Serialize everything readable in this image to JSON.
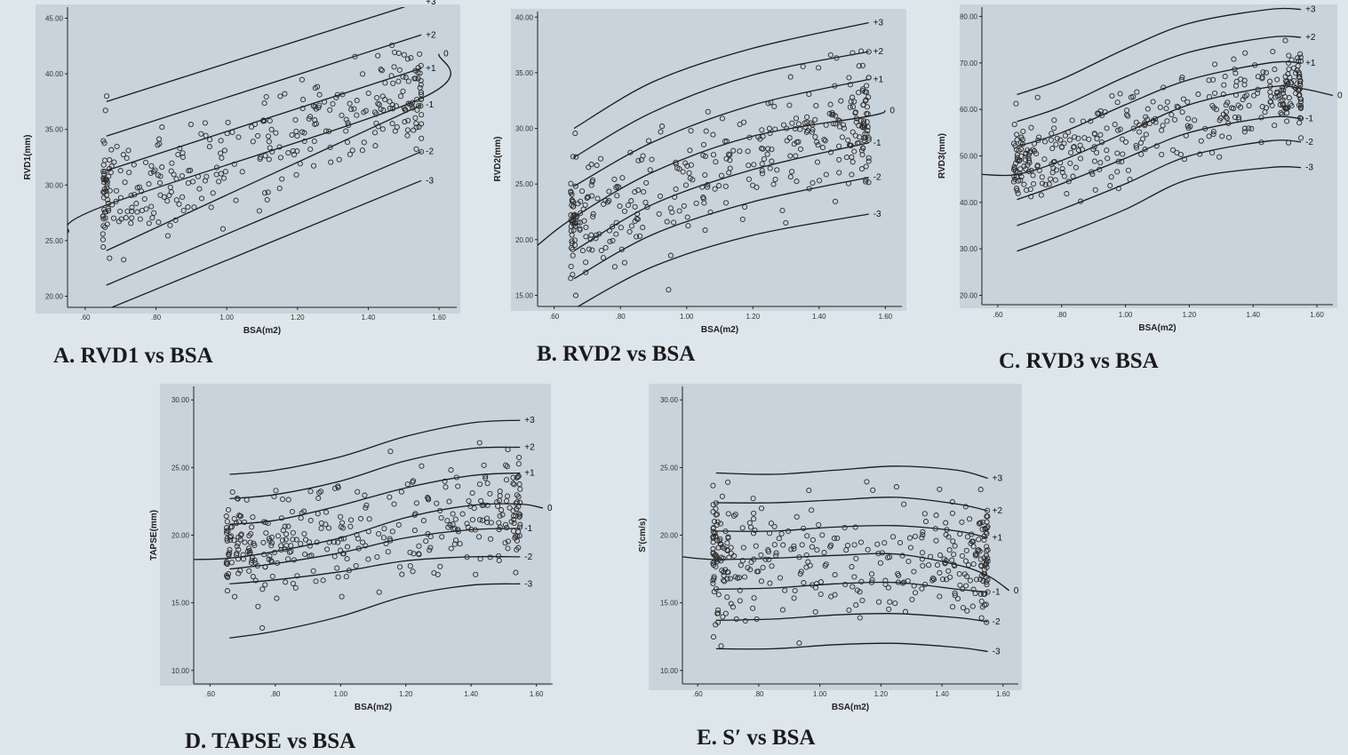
{
  "colors": {
    "background": "#dde6ea",
    "plot_bg": "#c8d3db",
    "line": "#1a1a1a",
    "marker": "#2a2a2a"
  },
  "chart_data": [
    {
      "id": "A",
      "type": "scatter",
      "caption": "A. RVD1 vs BSA",
      "xlabel": "BSA(m2)",
      "ylabel": "RVD1(mm)",
      "xlim": [
        0.55,
        1.65
      ],
      "ylim": [
        19,
        46
      ],
      "xticks": [
        ".60",
        ".80",
        "1.00",
        "1.20",
        "1.40",
        "1.60"
      ],
      "xtick_values": [
        0.6,
        0.8,
        1.0,
        1.2,
        1.4,
        1.6
      ],
      "yticks": [
        "20.00",
        "25.00",
        "30.00",
        "35.00",
        "40.00",
        "45.00"
      ],
      "ytick_values": [
        20,
        25,
        30,
        35,
        40,
        45
      ],
      "curve_x": [
        0.55,
        0.66,
        1.55,
        1.6
      ],
      "curves": [
        {
          "label": "+3",
          "y": [
            null,
            37.5,
            46.5,
            null
          ]
        },
        {
          "label": "+2",
          "y": [
            null,
            34.4,
            43.5,
            null
          ]
        },
        {
          "label": "+1",
          "y": [
            null,
            31.3,
            40.5,
            null
          ]
        },
        {
          "label": "0",
          "y": [
            25.7,
            28.2,
            37.8,
            41.8
          ]
        },
        {
          "label": "-1",
          "y": [
            null,
            24.1,
            37.2,
            null
          ]
        },
        {
          "label": "-2",
          "y": [
            null,
            21.0,
            33.0,
            null
          ]
        },
        {
          "label": "-3",
          "y": [
            null,
            18.8,
            30.4,
            null
          ]
        }
      ],
      "scatter": {
        "n": 340,
        "x_range": [
          0.65,
          1.55
        ],
        "y_center": [
          29.0,
          38.0
        ],
        "spread": 2.5,
        "seed": 11
      }
    },
    {
      "id": "B",
      "type": "scatter",
      "caption": "B. RVD2 vs BSA",
      "xlabel": "BSA(m2)",
      "ylabel": "RVD2(mm)",
      "xlim": [
        0.55,
        1.65
      ],
      "ylim": [
        14,
        40.5
      ],
      "xticks": [
        ".60",
        ".80",
        "1.00",
        "1.20",
        "1.40",
        "1.60"
      ],
      "xtick_values": [
        0.6,
        0.8,
        1.0,
        1.2,
        1.4,
        1.6
      ],
      "yticks": [
        "15.00",
        "20.00",
        "25.00",
        "30.00",
        "35.00",
        "40.00"
      ],
      "ytick_values": [
        15,
        20,
        25,
        30,
        35,
        40
      ],
      "curve_x": [
        0.55,
        0.66,
        0.9,
        1.2,
        1.55,
        1.6
      ],
      "curves": [
        {
          "label": "+3",
          "y": [
            null,
            30.0,
            34.2,
            37.2,
            39.5,
            null
          ]
        },
        {
          "label": "+2",
          "y": [
            null,
            27.4,
            31.5,
            34.8,
            36.9,
            null
          ]
        },
        {
          "label": "+1",
          "y": [
            null,
            24.8,
            28.8,
            32.1,
            34.4,
            null
          ]
        },
        {
          "label": "0",
          "y": [
            19.5,
            22.0,
            26.1,
            29.3,
            31.1,
            31.6
          ]
        },
        {
          "label": "-1",
          "y": [
            null,
            19.0,
            23.2,
            26.3,
            28.7,
            null
          ]
        },
        {
          "label": "-2",
          "y": [
            null,
            16.5,
            20.5,
            23.4,
            25.6,
            null
          ]
        },
        {
          "label": "-3",
          "y": [
            null,
            13.8,
            17.6,
            20.4,
            22.3,
            null
          ]
        }
      ],
      "scatter": {
        "n": 380,
        "x_range": [
          0.65,
          1.55
        ],
        "y_center": [
          22.0,
          31.0
        ],
        "spread": 2.6,
        "seed": 23
      }
    },
    {
      "id": "C",
      "type": "scatter",
      "caption": "C. RVD3 vs BSA",
      "xlabel": "BSA(m2)",
      "ylabel": "RVD3(mm)",
      "xlim": [
        0.55,
        1.65
      ],
      "ylim": [
        18,
        82
      ],
      "xticks": [
        ".60",
        ".80",
        "1.00",
        "1.20",
        "1.40",
        "1.60"
      ],
      "xtick_values": [
        0.6,
        0.8,
        1.0,
        1.2,
        1.4,
        1.6
      ],
      "yticks": [
        "20.00",
        "30.00",
        "40.00",
        "50.00",
        "60.00",
        "70.00",
        "80.00"
      ],
      "ytick_values": [
        20,
        30,
        40,
        50,
        60,
        70,
        80
      ],
      "curve_x": [
        0.55,
        0.66,
        0.8,
        1.0,
        1.2,
        1.45,
        1.55,
        1.65
      ],
      "curves": [
        {
          "label": "+3",
          "y": [
            null,
            63.2,
            66.5,
            73.0,
            78.5,
            81.5,
            81.5,
            null
          ]
        },
        {
          "label": "+2",
          "y": [
            null,
            57.4,
            60.6,
            67.0,
            72.3,
            75.5,
            75.5,
            null
          ]
        },
        {
          "label": "+1",
          "y": [
            null,
            52.0,
            55.0,
            61.0,
            66.4,
            70.0,
            70.0,
            null
          ]
        },
        {
          "label": "0",
          "y": [
            46.0,
            46.0,
            49.0,
            55.0,
            61.0,
            64.8,
            64.5,
            63.0
          ]
        },
        {
          "label": "-1",
          "y": [
            null,
            40.6,
            44.0,
            49.5,
            55.0,
            58.3,
            58.0,
            null
          ]
        },
        {
          "label": "-2",
          "y": [
            null,
            35.0,
            38.5,
            44.0,
            50.0,
            53.2,
            53.0,
            null
          ]
        },
        {
          "label": "-3",
          "y": [
            null,
            29.5,
            33.0,
            38.5,
            45.0,
            47.5,
            47.5,
            null
          ]
        }
      ],
      "scatter": {
        "n": 380,
        "x_range": [
          0.65,
          1.55
        ],
        "y_center": [
          47.5,
          64.5
        ],
        "spread": 4.5,
        "seed": 37
      }
    },
    {
      "id": "D",
      "type": "scatter",
      "caption": "D. TAPSE vs BSA",
      "xlabel": "BSA(m2)",
      "ylabel": "TAPSE(mm)",
      "xlim": [
        0.55,
        1.65
      ],
      "ylim": [
        9,
        31
      ],
      "xticks": [
        ".60",
        ".80",
        "1.00",
        "1.20",
        "1.40",
        "1.60"
      ],
      "xtick_values": [
        0.6,
        0.8,
        1.0,
        1.2,
        1.4,
        1.6
      ],
      "yticks": [
        "10.00",
        "15.00",
        "20.00",
        "25.00",
        "30.00"
      ],
      "ytick_values": [
        10,
        15,
        20,
        25,
        30
      ],
      "curve_x": [
        0.55,
        0.66,
        0.8,
        1.0,
        1.2,
        1.4,
        1.55,
        1.62
      ],
      "curves": [
        {
          "label": "+3",
          "y": [
            null,
            24.5,
            24.8,
            25.8,
            27.3,
            28.3,
            28.5,
            null
          ]
        },
        {
          "label": "+2",
          "y": [
            null,
            22.7,
            23.0,
            24.0,
            25.5,
            26.4,
            26.5,
            null
          ]
        },
        {
          "label": "+1",
          "y": [
            null,
            20.8,
            21.1,
            22.2,
            23.5,
            24.4,
            24.6,
            null
          ]
        },
        {
          "label": "0",
          "y": [
            18.2,
            18.3,
            18.8,
            19.8,
            21.3,
            22.2,
            22.3,
            22.0
          ]
        },
        {
          "label": "-1",
          "y": [
            null,
            17.5,
            17.9,
            18.7,
            19.8,
            20.4,
            20.5,
            null
          ]
        },
        {
          "label": "-2",
          "y": [
            null,
            16.4,
            16.7,
            17.3,
            18.1,
            18.4,
            18.4,
            null
          ]
        },
        {
          "label": "-3",
          "y": [
            null,
            12.4,
            12.9,
            14.0,
            15.5,
            16.3,
            16.4,
            null
          ]
        }
      ],
      "scatter": {
        "n": 360,
        "x_range": [
          0.65,
          1.55
        ],
        "y_center": [
          18.8,
          22.0
        ],
        "spread": 1.9,
        "seed": 51
      }
    },
    {
      "id": "E",
      "type": "scatter",
      "caption": "E. S′ vs BSA",
      "xlabel": "BSA(m2)",
      "ylabel": "S'(cm/s)",
      "xlim": [
        0.55,
        1.65
      ],
      "ylim": [
        9,
        31
      ],
      "xticks": [
        ".60",
        ".80",
        "1.00",
        "1.20",
        "1.40",
        "1.60"
      ],
      "xtick_values": [
        0.6,
        0.8,
        1.0,
        1.2,
        1.4,
        1.6
      ],
      "yticks": [
        "10.00",
        "15.00",
        "20.00",
        "25.00",
        "30.00"
      ],
      "ytick_values": [
        10,
        15,
        20,
        25,
        30
      ],
      "curve_x": [
        0.55,
        0.66,
        0.85,
        1.05,
        1.25,
        1.45,
        1.55,
        1.62
      ],
      "curves": [
        {
          "label": "+3",
          "y": [
            null,
            24.6,
            24.5,
            24.8,
            25.1,
            24.8,
            24.2,
            null
          ]
        },
        {
          "label": "+2",
          "y": [
            null,
            22.4,
            22.4,
            22.6,
            22.8,
            22.3,
            21.8,
            null
          ]
        },
        {
          "label": "+1",
          "y": [
            null,
            20.3,
            20.3,
            20.6,
            20.7,
            20.3,
            19.8,
            null
          ]
        },
        {
          "label": "0",
          "y": [
            18.4,
            18.2,
            18.3,
            18.5,
            18.6,
            17.8,
            17.0,
            15.9
          ]
        },
        {
          "label": "-1",
          "y": [
            null,
            16.0,
            16.1,
            16.4,
            16.5,
            16.0,
            15.8,
            null
          ]
        },
        {
          "label": "-2",
          "y": [
            null,
            13.7,
            13.8,
            14.1,
            14.2,
            13.9,
            13.6,
            null
          ]
        },
        {
          "label": "-3",
          "y": [
            null,
            11.6,
            11.6,
            11.9,
            12.0,
            11.7,
            11.4,
            null
          ]
        }
      ],
      "scatter": {
        "n": 380,
        "x_range": [
          0.65,
          1.55
        ],
        "y_center": [
          18.3,
          18.2
        ],
        "spread": 2.0,
        "seed": 67
      }
    }
  ]
}
